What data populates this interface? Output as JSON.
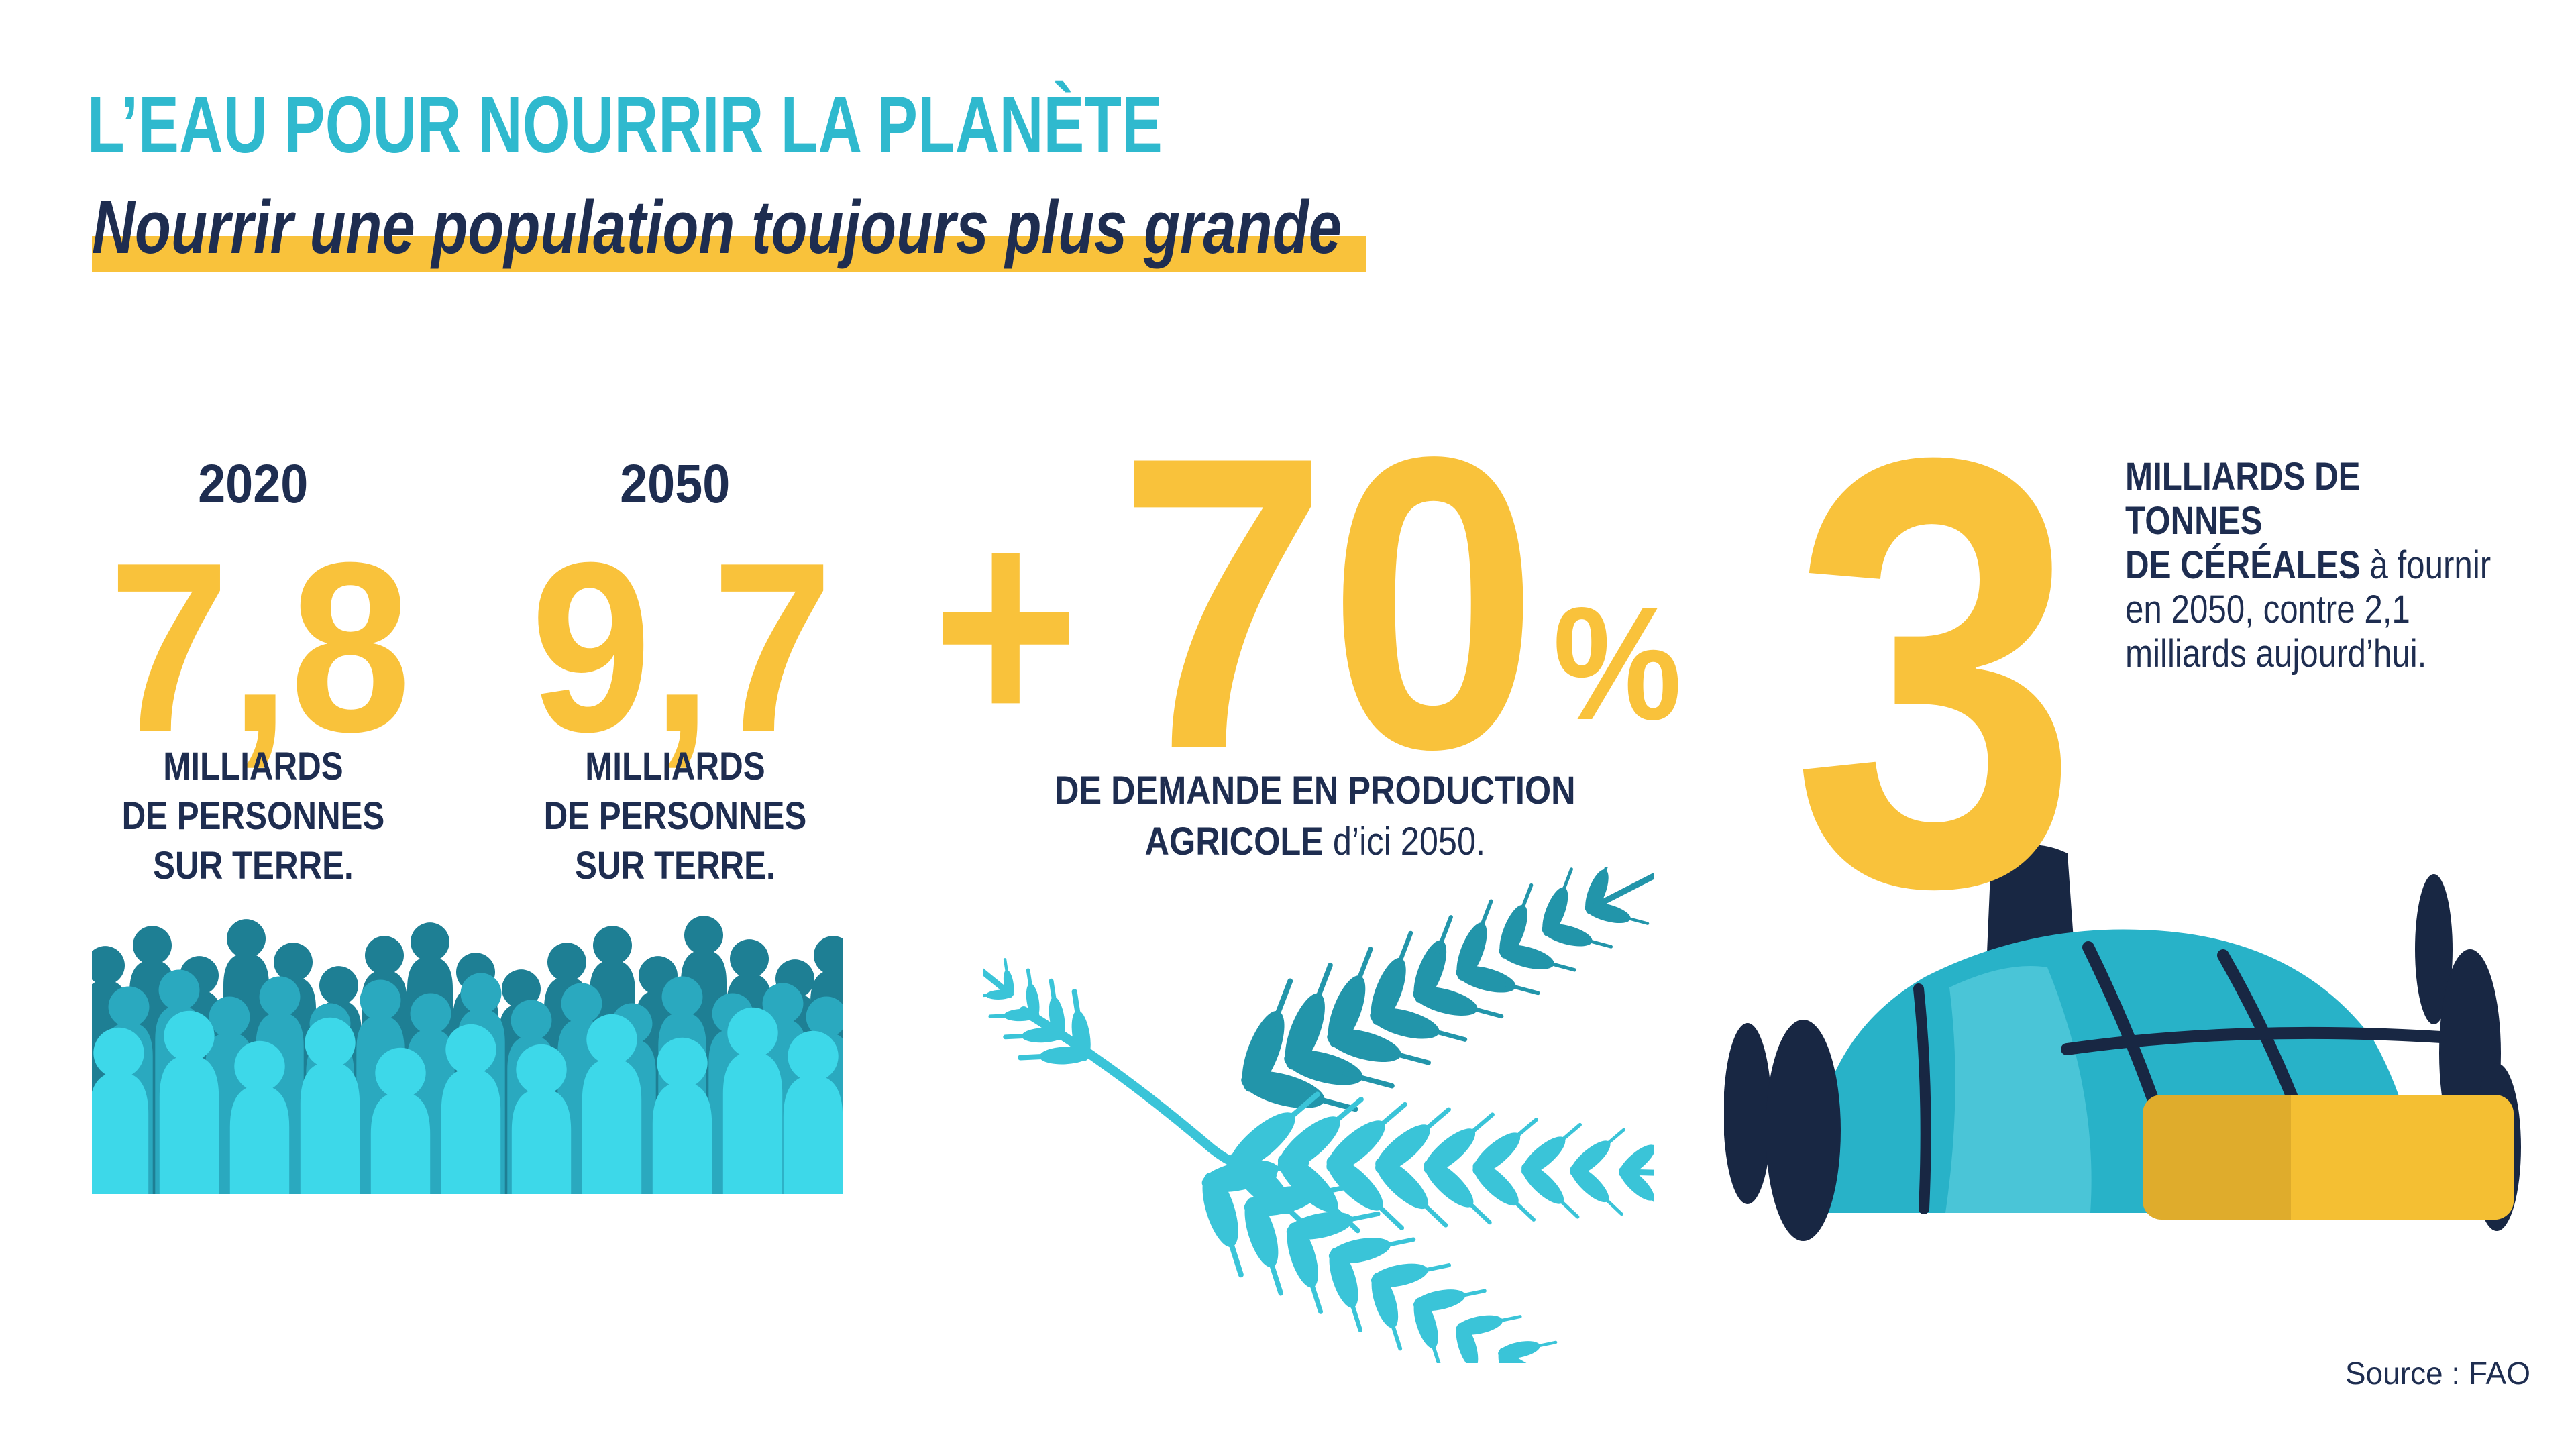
{
  "header": {
    "title": "L’EAU POUR NOURRIR LA PLANÈTE",
    "subtitle": "Nourrir une population toujours plus grande"
  },
  "stats": {
    "population_2020": {
      "year": "2020",
      "value": "7,8",
      "label_lines": [
        "MILLIARDS",
        "DE PERSONNES",
        "SUR TERRE."
      ]
    },
    "population_2050": {
      "year": "2050",
      "value": "9,7",
      "label_lines": [
        "MILLIARDS",
        "DE PERSONNES",
        "SUR TERRE."
      ]
    },
    "production": {
      "plus": "+",
      "value": "70",
      "percent": "%",
      "caption_line1": "DE DEMANDE EN PRODUCTION",
      "caption_line2_bold": "AGRICOLE",
      "caption_line2_rest": " d’ici 2050."
    },
    "cereals": {
      "value": "3",
      "line1_bold": "MILLIARDS DE TONNES",
      "line2_bold": "DE CÉRÉALES",
      "line2_rest": " à fournir",
      "line3": "en 2050, contre 2,1",
      "line4": "milliards aujourd’hui."
    }
  },
  "footer": {
    "source": "Source : FAO"
  },
  "illustrations": {
    "crowd": "crowd-of-people",
    "wheat": "wheat-ears",
    "barn": "grain-storage-with-hay-bale"
  },
  "colors": {
    "teal": "#2FB9CE",
    "yellow": "#F9C23B",
    "navy": "#1E2D50",
    "illus_navy": "#182743",
    "crowd_back": "#1E7F94",
    "crowd_mid": "#2AA9BF",
    "crowd_front": "#3DD8E9",
    "wheat_dark": "#2295AA",
    "wheat_light": "#3AC4D8",
    "barn_teal": "#28B2C8",
    "barn_highlight": "#4EC7D8",
    "bale_yellow": "#F4BF33",
    "bale_dark": "#DFAC2C"
  }
}
